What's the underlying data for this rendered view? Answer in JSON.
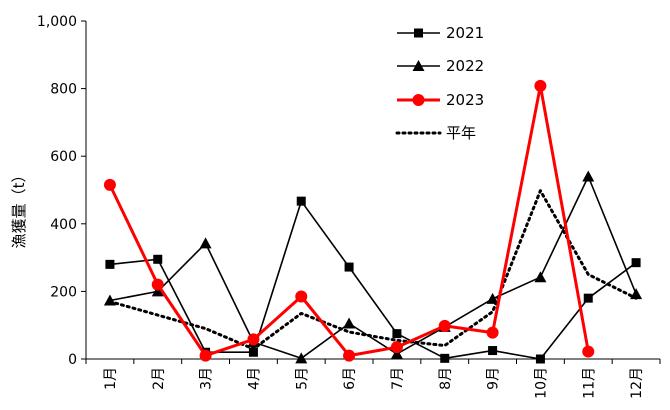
{
  "chart_data": {
    "type": "line",
    "title": "",
    "xlabel": "",
    "ylabel": "漁獲量（t）",
    "ylim": [
      0,
      1000
    ],
    "yticks": [
      "0",
      "200",
      "400",
      "600",
      "800",
      "1,000"
    ],
    "categories": [
      "1月",
      "2月",
      "3月",
      "4月",
      "5月",
      "6月",
      "7月",
      "8月",
      "9月",
      "10月",
      "11月",
      "12月"
    ],
    "grid": false,
    "legend_position": "top-right",
    "series": [
      {
        "name": "2021",
        "color": "#000000",
        "marker": "square",
        "line": "solid",
        "values": [
          280,
          295,
          20,
          20,
          467,
          272,
          75,
          2,
          25,
          0,
          180,
          285
        ]
      },
      {
        "name": "2022",
        "color": "#000000",
        "marker": "triangle",
        "line": "solid",
        "values": [
          173,
          200,
          342,
          50,
          2,
          105,
          15,
          95,
          178,
          242,
          540,
          192
        ]
      },
      {
        "name": "2023",
        "color": "#ff0000",
        "marker": "circle",
        "line": "solid",
        "values": [
          515,
          220,
          10,
          58,
          185,
          10,
          35,
          98,
          78,
          808,
          22,
          null
        ]
      },
      {
        "name": "平年",
        "color": "#000000",
        "marker": "none",
        "line": "dotted",
        "values": [
          170,
          130,
          90,
          30,
          135,
          80,
          55,
          40,
          140,
          498,
          250,
          180
        ]
      }
    ]
  }
}
